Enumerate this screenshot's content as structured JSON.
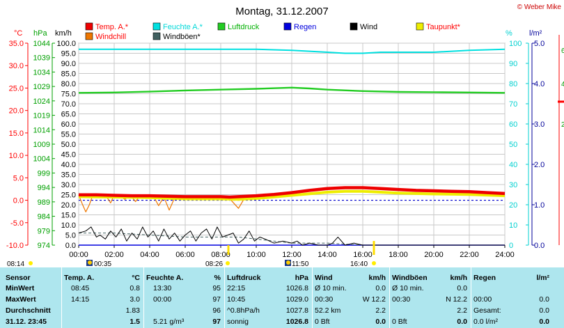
{
  "header": {
    "title": "Montag, 31.12.2007",
    "copyright": "© Weber Mike"
  },
  "legend": [
    {
      "label": "Temp. A.*",
      "color": "#ee0000",
      "text_color": "#ff0000"
    },
    {
      "label": "Feuchte A.*",
      "color": "#00e0e0",
      "text_color": "#00d8d8"
    },
    {
      "label": "Luftdruck",
      "color": "#22cc22",
      "text_color": "#00b000"
    },
    {
      "label": "Regen",
      "color": "#0000dd",
      "text_color": "#0000dd"
    },
    {
      "label": "Wind",
      "color": "#000000",
      "text_color": "#000000"
    },
    {
      "label": "Taupunkt*",
      "color": "#eeee00",
      "text_color": "#ff0000"
    },
    {
      "label": "Windchill",
      "color": "#ee7700",
      "text_color": "#ff0000"
    },
    {
      "label": "Windböen*",
      "color": "#406060",
      "text_color": "#000000"
    }
  ],
  "axes": {
    "temp": {
      "unit": "°C",
      "color": "#ff0000",
      "ticks": [
        "35.0",
        "30.0",
        "25.0",
        "20.0",
        "15.0",
        "10.0",
        "5.0",
        "0.0",
        "-5.0",
        "-10.0"
      ]
    },
    "press": {
      "unit": "hPa",
      "color": "#00a000",
      "ticks": [
        "1044",
        "1039",
        "1034",
        "1029",
        "1024",
        "1019",
        "1014",
        "1009",
        "1004",
        "999",
        "994",
        "989",
        "984",
        "979",
        "974"
      ]
    },
    "wind": {
      "unit": "km/h",
      "color": "#000000",
      "ticks": [
        "100.0",
        "95.0",
        "90.0",
        "85.0",
        "80.0",
        "75.0",
        "70.0",
        "65.0",
        "60.0",
        "55.0",
        "50.0",
        "45.0",
        "40.0",
        "35.0",
        "30.0",
        "25.0",
        "20.0",
        "15.0",
        "10.0",
        "5.0",
        "0.0"
      ]
    },
    "hum": {
      "unit": "%",
      "color": "#00d0d0",
      "ticks": [
        "100",
        "90",
        "80",
        "70",
        "60",
        "50",
        "40",
        "30",
        "20",
        "10",
        "0"
      ]
    },
    "rain": {
      "unit": "l/m²",
      "color": "#000099",
      "ticks": [
        "5.0",
        "4.0",
        "3.0",
        "2.0",
        "1.0",
        "0.0"
      ]
    },
    "right2": {
      "ticks": [
        "6",
        "4",
        "2"
      ]
    },
    "x": {
      "ticks": [
        "00:00",
        "02:00",
        "04:00",
        "06:00",
        "08:00",
        "10:00",
        "12:00",
        "14:00",
        "16:00",
        "18:00",
        "20:00",
        "22:00",
        "24:00"
      ]
    }
  },
  "sun": [
    {
      "label": "08:14",
      "kind": "sunrise"
    },
    {
      "label": "00:35",
      "kind": "moon"
    },
    {
      "label": "08:26",
      "kind": "moon"
    },
    {
      "label": "11:50",
      "kind": "moon"
    },
    {
      "label": "16:40",
      "kind": "sunset"
    }
  ],
  "chart_data": {
    "type": "line",
    "title": "Montag, 31.12.2007",
    "x_range": [
      0,
      24
    ],
    "xlabel": "",
    "series": [
      {
        "name": "Temp. A.*",
        "axis": "°C",
        "color": "#ee0000",
        "x": [
          0,
          1,
          2,
          3,
          4,
          5,
          6,
          7,
          8,
          8.5,
          9,
          10,
          11,
          12,
          13,
          14,
          15,
          16,
          17,
          18,
          19,
          20,
          21,
          22,
          23,
          24
        ],
        "values": [
          1.2,
          1.2,
          1.1,
          1.0,
          1.0,
          0.9,
          0.8,
          0.8,
          0.8,
          0.7,
          0.8,
          1.0,
          1.3,
          1.7,
          2.2,
          2.6,
          2.8,
          2.8,
          2.6,
          2.4,
          2.2,
          2.1,
          2.0,
          1.9,
          1.7,
          1.5
        ]
      },
      {
        "name": "Taupunkt*",
        "axis": "°C",
        "color": "#eeee00",
        "x": [
          0,
          2,
          4,
          6,
          8,
          9,
          10,
          12,
          14,
          15,
          16,
          17,
          18,
          20,
          22,
          24
        ],
        "values": [
          0.8,
          0.7,
          0.6,
          0.3,
          0.3,
          0.2,
          0.4,
          1.1,
          1.8,
          2.0,
          2.0,
          1.8,
          1.6,
          1.4,
          1.3,
          1.0
        ]
      },
      {
        "name": "Windchill",
        "axis": "°C",
        "color": "#ee7700",
        "x": [
          0,
          0.2,
          0.4,
          0.6,
          0.8,
          1.0,
          1.2,
          1.5,
          1.8,
          2.0,
          2.3,
          2.6,
          2.9,
          3.2,
          3.5,
          3.8,
          4.2,
          4.5,
          4.8,
          5.1,
          5.4,
          5.8,
          6.2,
          8,
          8.4,
          8.7,
          9.0,
          9.3,
          9.6,
          10,
          12,
          14,
          16,
          18,
          20,
          22,
          24
        ],
        "values": [
          1.2,
          -0.8,
          -2.6,
          -1.0,
          1.2,
          1.2,
          0.8,
          1.2,
          -0.6,
          1.2,
          1.0,
          0.2,
          1.2,
          -0.3,
          1.2,
          0.4,
          1.0,
          -1.2,
          0.7,
          -2.2,
          0.5,
          0.8,
          0.8,
          0.8,
          0.8,
          -0.5,
          -1.8,
          0.2,
          0.8,
          1.0,
          1.7,
          2.6,
          2.8,
          2.4,
          2.1,
          1.9,
          1.5
        ]
      },
      {
        "name": "Feuchte A.*",
        "axis": "%",
        "color": "#00e0e0",
        "x": [
          0,
          2,
          4,
          6,
          8,
          10,
          12,
          14,
          15,
          16,
          17,
          18,
          20,
          22,
          24
        ],
        "values": [
          97,
          97,
          97,
          97,
          97,
          97,
          96.5,
          95.5,
          95,
          95,
          95.5,
          95.5,
          95.5,
          96.5,
          97
        ]
      },
      {
        "name": "Luftdruck",
        "axis": "hPa",
        "color": "#22cc22",
        "x": [
          0,
          2,
          4,
          6,
          8,
          10,
          12,
          13,
          14,
          16,
          18,
          20,
          22,
          24
        ],
        "values": [
          1026.8,
          1026.9,
          1027.2,
          1027.6,
          1027.9,
          1028.2,
          1028.6,
          1028.3,
          1027.9,
          1027.4,
          1027.1,
          1027.0,
          1026.9,
          1026.8
        ]
      },
      {
        "name": "Wind",
        "axis": "km/h",
        "color": "#000000",
        "x": [
          0,
          0.4,
          0.7,
          1.0,
          1.2,
          1.5,
          1.8,
          2.1,
          2.4,
          2.7,
          3.0,
          3.3,
          3.6,
          3.9,
          4.2,
          4.5,
          4.8,
          5.1,
          5.4,
          5.7,
          6.0,
          6.3,
          6.6,
          6.9,
          7.2,
          7.5,
          7.8,
          8.1,
          8.4,
          8.7,
          9.0,
          9.3,
          9.6,
          9.9,
          10.2,
          10.5,
          11,
          11.5,
          12,
          12.3,
          12.6,
          13,
          13.5,
          14,
          14.3,
          14.6,
          15,
          15.5,
          16,
          16.5,
          17,
          18,
          20,
          22,
          24
        ],
        "values": [
          6,
          7,
          9,
          4,
          5,
          3,
          7,
          4,
          8,
          2,
          6,
          3,
          9,
          4,
          7,
          2,
          8,
          3,
          6,
          2,
          5,
          7,
          2,
          6,
          8,
          3,
          9,
          4,
          5,
          6,
          1,
          3,
          7,
          2,
          4,
          3,
          1,
          2,
          1,
          2,
          0,
          1,
          0,
          0,
          1,
          4,
          0,
          1,
          0,
          0,
          0,
          0,
          0,
          0,
          0
        ]
      },
      {
        "name": "Windböen*",
        "axis": "km/h",
        "color": "#406060",
        "x": [
          0,
          2,
          4,
          6,
          8,
          9,
          10,
          11,
          12,
          13,
          14,
          15,
          16,
          17,
          18,
          20,
          22,
          24
        ],
        "values": [
          6,
          6,
          5,
          4,
          4,
          4,
          3,
          2,
          1,
          1,
          1,
          0.5,
          0,
          0,
          0,
          0,
          0,
          0
        ]
      },
      {
        "name": "Regen",
        "axis": "l/m²",
        "color": "#0000dd",
        "x": [
          0,
          24
        ],
        "values": [
          0,
          0
        ]
      }
    ],
    "reference_line": {
      "axis": "°C",
      "value": 0,
      "color": "#0000cc",
      "style": "dashed"
    }
  },
  "table": {
    "columns": [
      {
        "rows": [
          [
            "Sensor"
          ],
          [
            "MinWert"
          ],
          [
            "MaxWert"
          ],
          [
            "Durchschnitt"
          ],
          [
            "31.12. 23:45"
          ]
        ]
      },
      {
        "header": [
          "Temp. A.",
          "°C"
        ],
        "rows": [
          [
            "08:45",
            "0.8"
          ],
          [
            "14:15",
            "3.0"
          ],
          [
            "",
            "1.83"
          ],
          [
            "",
            "1.5"
          ]
        ]
      },
      {
        "header": [
          "Feuchte A.",
          "%"
        ],
        "rows": [
          [
            "13:30",
            "95"
          ],
          [
            "00:00",
            "97"
          ],
          [
            "",
            "96"
          ],
          [
            "5.21 g/m³",
            "97"
          ]
        ]
      },
      {
        "header": [
          "Luftdruck",
          "hPa"
        ],
        "rows": [
          [
            "22:15",
            "1026.8"
          ],
          [
            "10:45",
            "1029.0"
          ],
          [
            "^0.8hPa/h",
            "1027.8"
          ],
          [
            "sonnig",
            "1026.8"
          ]
        ]
      },
      {
        "header": [
          "Wind",
          "km/h"
        ],
        "rows": [
          [
            "Ø 10 min.",
            "0.0"
          ],
          [
            "00:30",
            "W 12.2"
          ],
          [
            "52.2 km",
            "2.2"
          ],
          [
            "0 Bft",
            "0.0"
          ]
        ]
      },
      {
        "header": [
          "Windböen",
          "km/h"
        ],
        "rows": [
          [
            "Ø 10 min.",
            "0.0"
          ],
          [
            "00:30",
            "N 12.2"
          ],
          [
            "",
            "2.2"
          ],
          [
            "0 Bft",
            "0.0"
          ]
        ]
      },
      {
        "header": [
          "Regen",
          "l/m²"
        ],
        "rows": [
          [
            "",
            ""
          ],
          [
            "00:00",
            "0.0"
          ],
          [
            "Gesamt:",
            "0.0"
          ],
          [
            "0.0 l/m²",
            "0.0"
          ]
        ]
      }
    ]
  }
}
